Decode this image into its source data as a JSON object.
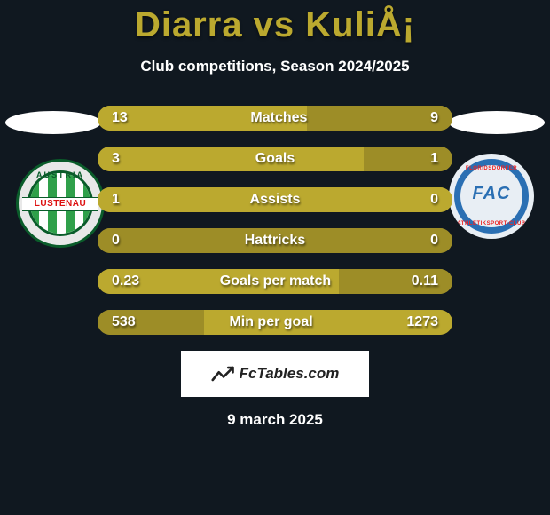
{
  "colors": {
    "bg": "#101820",
    "accent": "#bba92f",
    "barDarker": "#9d8d27",
    "text": "#ffffff"
  },
  "title": "Diarra vs KuliÅ¡",
  "subtitle": "Club competitions, Season 2024/2025",
  "leftClub": {
    "name": "Austria Lustenau",
    "banner": "LUSTENAU",
    "arc": "AUSTRIA"
  },
  "rightClub": {
    "name": "FAC Wien",
    "code": "FAC",
    "arcTop": "FLORIDSDORFER",
    "arcBottom": "ATHLETIKSPORT-CLUB"
  },
  "bars": [
    {
      "label": "Matches",
      "l": "13",
      "r": "9",
      "lw": 59,
      "rw": 41,
      "lcol": "#bba92f",
      "rcol": "#9d8d27"
    },
    {
      "label": "Goals",
      "l": "3",
      "r": "1",
      "lw": 75,
      "rw": 25,
      "lcol": "#bba92f",
      "rcol": "#9d8d27"
    },
    {
      "label": "Assists",
      "l": "1",
      "r": "0",
      "lw": 100,
      "rw": 0,
      "lcol": "#bba92f",
      "rcol": "#9d8d27"
    },
    {
      "label": "Hattricks",
      "l": "0",
      "r": "0",
      "lw": 100,
      "rw": 0,
      "lcol": "#9d8d27",
      "rcol": "#9d8d27"
    },
    {
      "label": "Goals per match",
      "l": "0.23",
      "r": "0.11",
      "lw": 68,
      "rw": 32,
      "lcol": "#bba92f",
      "rcol": "#9d8d27"
    },
    {
      "label": "Min per goal",
      "l": "538",
      "r": "1273",
      "lw": 30,
      "rw": 70,
      "lcol": "#9d8d27",
      "rcol": "#bba92f"
    }
  ],
  "watermark": "FcTables.com",
  "date": "9 march 2025"
}
